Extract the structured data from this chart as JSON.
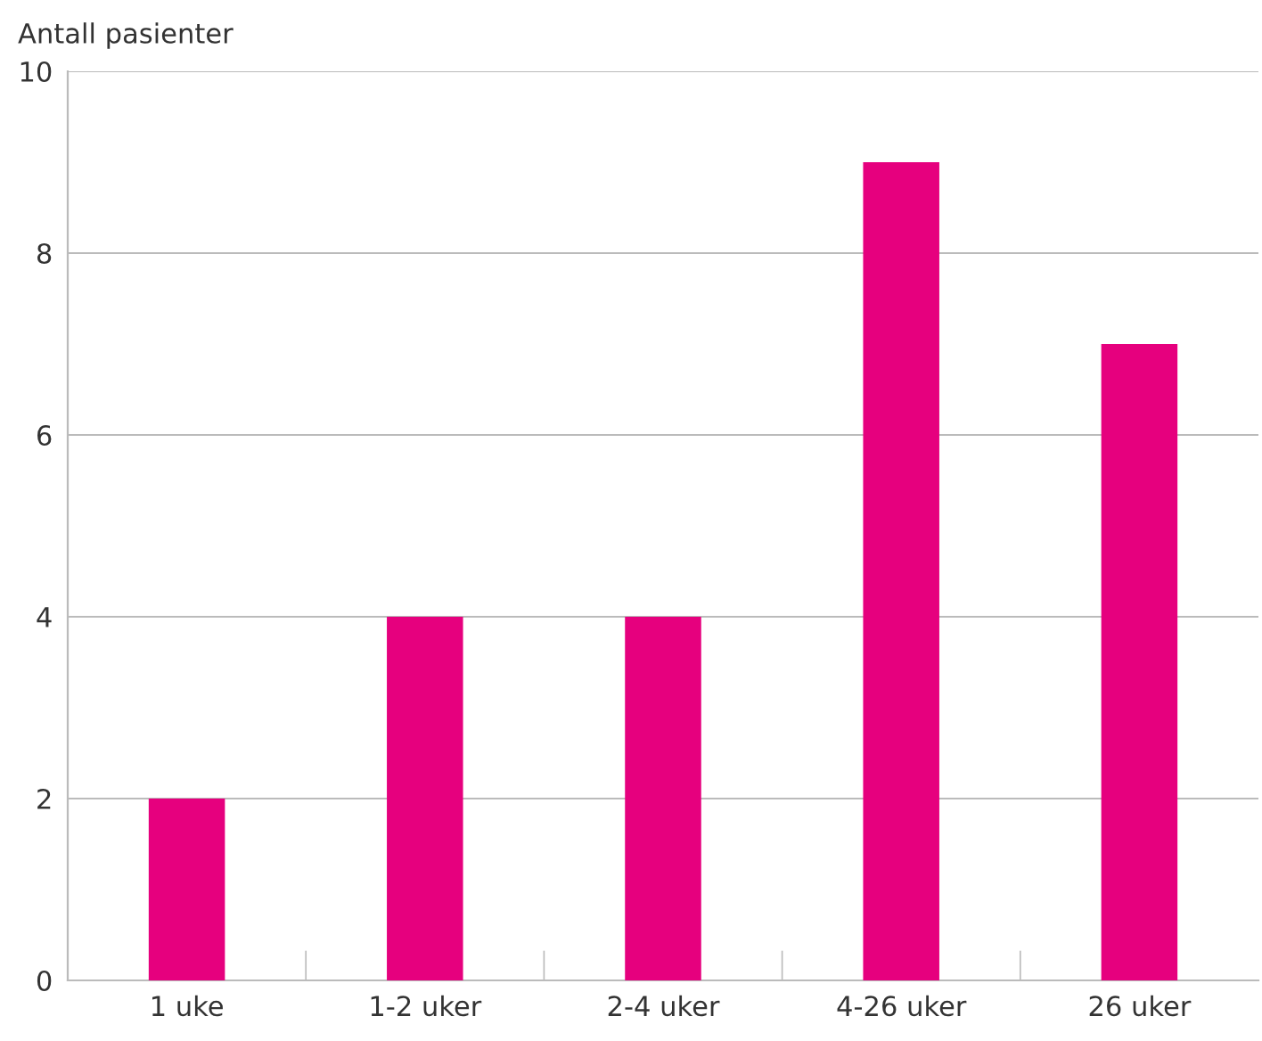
{
  "chart_data": {
    "type": "bar",
    "ylabel": "Antall pasienter",
    "categories": [
      "1 uke",
      "1-2 uker",
      "2-4 uker",
      "4-26 uker",
      "26 uker"
    ],
    "values": [
      2,
      4,
      4,
      9,
      7
    ],
    "color": "#e6007e",
    "ylim": [
      0,
      10
    ],
    "yticks": [
      0,
      2,
      4,
      6,
      8,
      10
    ],
    "grid": "y"
  }
}
